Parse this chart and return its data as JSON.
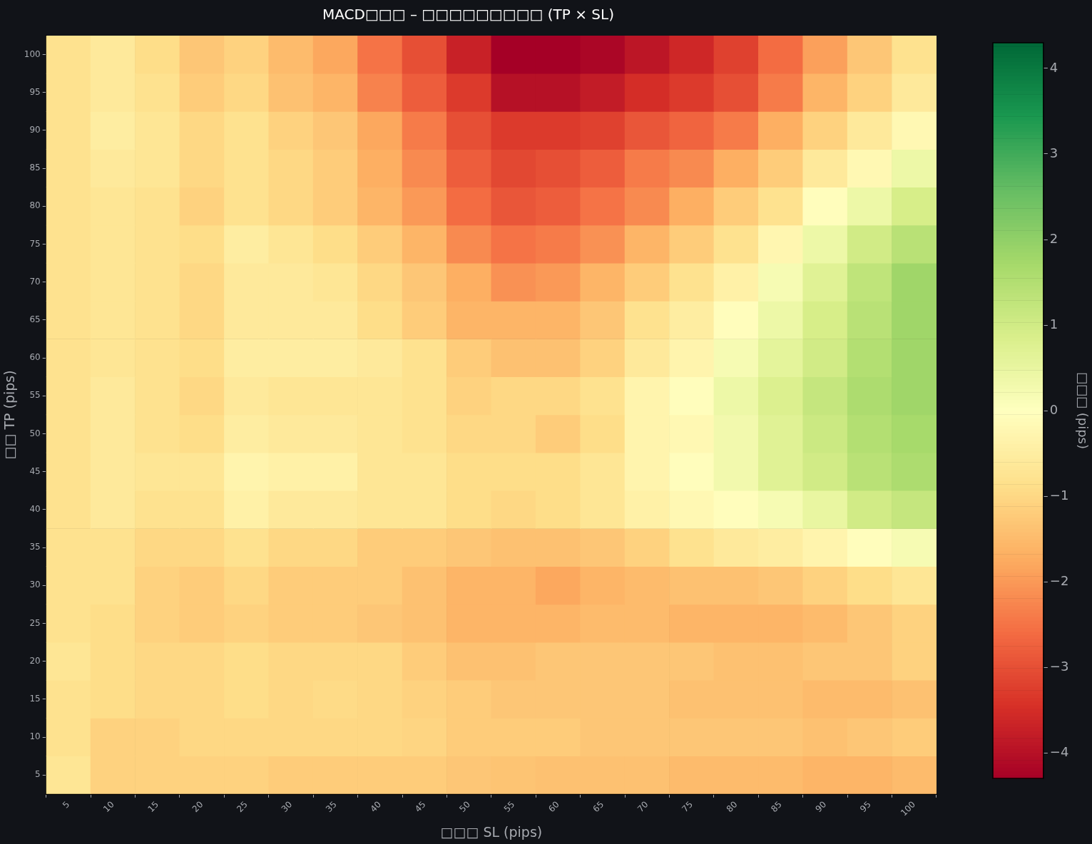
{
  "chart_data": {
    "type": "heatmap",
    "title": "MACD□□□ – □□□□□□□□□ (TP × SL)",
    "xlabel": "□□□ SL (pips)",
    "ylabel": "□□ TP (pips)",
    "clabel": "□□□ (pips)",
    "categories": [
      "5",
      "10",
      "15",
      "20",
      "25",
      "30",
      "35",
      "40",
      "45",
      "50",
      "55",
      "60",
      "65",
      "70",
      "75",
      "80",
      "85",
      "90",
      "95",
      "100"
    ],
    "y_categories": [
      "100",
      "95",
      "90",
      "85",
      "80",
      "75",
      "70",
      "65",
      "60",
      "55",
      "50",
      "45",
      "40",
      "35",
      "30",
      "25",
      "20",
      "15",
      "10",
      "5"
    ],
    "clim": [
      -4.3,
      4.3
    ],
    "cticks": [
      -4,
      -3,
      -2,
      -1,
      0,
      1,
      2,
      3,
      4
    ],
    "grid": false,
    "cells": [
      [
        -0.8,
        -0.6,
        -0.9,
        -1.3,
        -1.1,
        -1.5,
        -1.8,
        -2.5,
        -3.0,
        -3.7,
        -4.3,
        -4.3,
        -4.2,
        -3.9,
        -3.6,
        -3.2,
        -2.6,
        -1.9,
        -1.3,
        -0.8
      ],
      [
        -0.8,
        -0.6,
        -0.8,
        -1.2,
        -1.0,
        -1.4,
        -1.6,
        -2.3,
        -2.8,
        -3.3,
        -4.0,
        -4.0,
        -3.8,
        -3.5,
        -3.3,
        -3.0,
        -2.4,
        -1.6,
        -1.1,
        -0.6
      ],
      [
        -0.8,
        -0.5,
        -0.7,
        -1.0,
        -0.8,
        -1.1,
        -1.3,
        -1.8,
        -2.4,
        -3.0,
        -3.3,
        -3.3,
        -3.2,
        -2.9,
        -2.7,
        -2.4,
        -1.7,
        -1.1,
        -0.6,
        -0.2
      ],
      [
        -0.8,
        -0.6,
        -0.7,
        -1.0,
        -0.8,
        -1.0,
        -1.2,
        -1.7,
        -2.2,
        -2.8,
        -3.1,
        -3.0,
        -2.8,
        -2.4,
        -2.2,
        -1.7,
        -1.2,
        -0.6,
        -0.2,
        0.4
      ],
      [
        -0.8,
        -0.7,
        -0.8,
        -1.1,
        -0.8,
        -1.0,
        -1.2,
        -1.6,
        -2.0,
        -2.6,
        -2.9,
        -2.8,
        -2.5,
        -2.2,
        -1.7,
        -1.2,
        -0.8,
        -0.05,
        0.4,
        0.9
      ],
      [
        -0.8,
        -0.7,
        -0.8,
        -0.9,
        -0.5,
        -0.7,
        -0.9,
        -1.2,
        -1.6,
        -2.2,
        -2.5,
        -2.4,
        -2.1,
        -1.6,
        -1.2,
        -0.8,
        -0.25,
        0.4,
        1.0,
        1.4
      ],
      [
        -0.8,
        -0.7,
        -0.8,
        -1.0,
        -0.6,
        -0.6,
        -0.7,
        -1.0,
        -1.3,
        -1.7,
        -2.1,
        -2.0,
        -1.6,
        -1.2,
        -0.8,
        -0.4,
        0.2,
        0.7,
        1.3,
        1.8
      ],
      [
        -0.8,
        -0.7,
        -0.8,
        -1.0,
        -0.6,
        -0.6,
        -0.6,
        -0.9,
        -1.2,
        -1.6,
        -1.6,
        -1.6,
        -1.3,
        -0.8,
        -0.5,
        -0.05,
        0.4,
        0.9,
        1.4,
        1.8
      ],
      [
        -0.8,
        -0.7,
        -0.8,
        -0.9,
        -0.5,
        -0.5,
        -0.5,
        -0.6,
        -0.8,
        -1.2,
        -1.4,
        -1.4,
        -1.1,
        -0.6,
        -0.3,
        0.2,
        0.6,
        1.0,
        1.5,
        1.8
      ],
      [
        -0.8,
        -0.6,
        -0.8,
        -1.0,
        -0.6,
        -0.7,
        -0.7,
        -0.7,
        -0.8,
        -1.1,
        -1.0,
        -1.0,
        -0.8,
        -0.3,
        -0.05,
        0.4,
        0.8,
        1.2,
        1.6,
        1.8
      ],
      [
        -0.8,
        -0.6,
        -0.8,
        -0.9,
        -0.5,
        -0.6,
        -0.6,
        -0.7,
        -0.8,
        -1.0,
        -1.0,
        -1.2,
        -0.9,
        -0.3,
        -0.2,
        0.3,
        0.7,
        1.1,
        1.5,
        1.7
      ],
      [
        -0.8,
        -0.6,
        -0.7,
        -0.7,
        -0.3,
        -0.4,
        -0.4,
        -0.7,
        -0.7,
        -0.9,
        -0.9,
        -0.9,
        -0.7,
        -0.3,
        -0.05,
        0.3,
        0.7,
        1.0,
        1.4,
        1.6
      ],
      [
        -0.8,
        -0.6,
        -0.8,
        -0.8,
        -0.4,
        -0.6,
        -0.6,
        -0.7,
        -0.7,
        -0.9,
        -1.0,
        -0.9,
        -0.7,
        -0.4,
        -0.2,
        -0.05,
        0.2,
        0.5,
        1.0,
        1.2
      ],
      [
        -0.8,
        -0.8,
        -1.0,
        -1.0,
        -0.8,
        -1.0,
        -1.0,
        -1.2,
        -1.2,
        -1.3,
        -1.4,
        -1.4,
        -1.3,
        -1.1,
        -0.8,
        -0.6,
        -0.5,
        -0.3,
        -0.05,
        0.2
      ],
      [
        -0.8,
        -0.8,
        -1.1,
        -1.2,
        -1.0,
        -1.2,
        -1.2,
        -1.2,
        -1.4,
        -1.6,
        -1.6,
        -1.8,
        -1.6,
        -1.5,
        -1.4,
        -1.4,
        -1.3,
        -1.1,
        -0.9,
        -0.7
      ],
      [
        -0.8,
        -0.9,
        -1.1,
        -1.2,
        -1.1,
        -1.2,
        -1.2,
        -1.3,
        -1.4,
        -1.6,
        -1.6,
        -1.6,
        -1.5,
        -1.5,
        -1.6,
        -1.6,
        -1.6,
        -1.5,
        -1.3,
        -1.1
      ],
      [
        -0.7,
        -0.9,
        -1.0,
        -1.0,
        -0.9,
        -1.0,
        -1.0,
        -1.0,
        -1.2,
        -1.4,
        -1.4,
        -1.3,
        -1.3,
        -1.3,
        -1.3,
        -1.4,
        -1.4,
        -1.3,
        -1.3,
        -1.1
      ],
      [
        -0.8,
        -0.9,
        -1.0,
        -1.0,
        -0.9,
        -1.0,
        -0.95,
        -1.0,
        -1.1,
        -1.2,
        -1.3,
        -1.3,
        -1.3,
        -1.3,
        -1.4,
        -1.4,
        -1.4,
        -1.5,
        -1.5,
        -1.4
      ],
      [
        -0.8,
        -1.1,
        -1.1,
        -1.0,
        -1.0,
        -1.0,
        -1.0,
        -1.0,
        -1.05,
        -1.2,
        -1.2,
        -1.2,
        -1.3,
        -1.3,
        -1.3,
        -1.3,
        -1.3,
        -1.4,
        -1.3,
        -1.2
      ],
      [
        -0.7,
        -1.1,
        -1.1,
        -1.1,
        -1.1,
        -1.2,
        -1.2,
        -1.2,
        -1.2,
        -1.3,
        -1.35,
        -1.4,
        -1.4,
        -1.4,
        -1.5,
        -1.5,
        -1.5,
        -1.6,
        -1.6,
        -1.5
      ]
    ]
  }
}
